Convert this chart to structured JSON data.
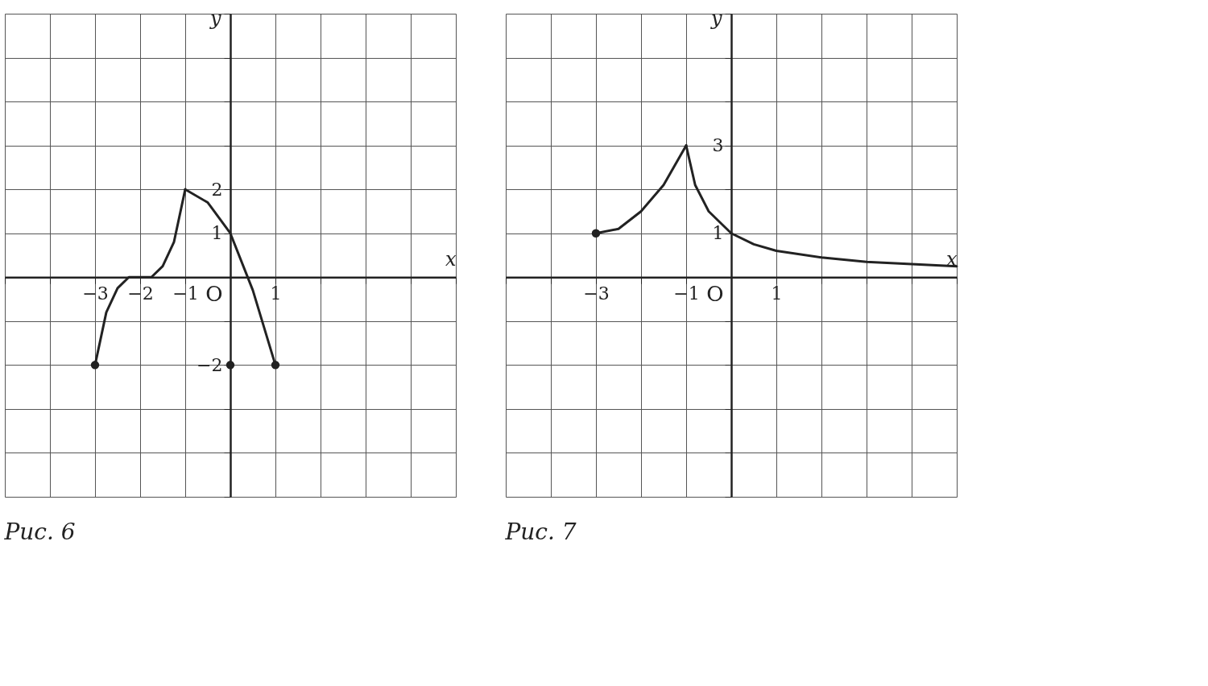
{
  "chart_data": [
    {
      "type": "line",
      "title": "Рис. 6",
      "xlabel": "x",
      "ylabel": "y",
      "grid": true,
      "annotations": [
        "O"
      ],
      "xlim": [
        -5,
        5
      ],
      "ylim": [
        -5,
        6
      ],
      "xticks": [
        {
          "value": -5,
          "label": null
        },
        {
          "value": -4,
          "label": null
        },
        {
          "value": -3,
          "label": "−3"
        },
        {
          "value": -2,
          "label": "−2"
        },
        {
          "value": -1,
          "label": "−1"
        },
        {
          "value": 0,
          "label": null
        },
        {
          "value": 1,
          "label": "1"
        },
        {
          "value": 2,
          "label": null
        },
        {
          "value": 3,
          "label": null
        },
        {
          "value": 4,
          "label": null
        },
        {
          "value": 5,
          "label": null
        }
      ],
      "yticks": [
        {
          "value": -5,
          "label": null
        },
        {
          "value": -4,
          "label": null
        },
        {
          "value": -3,
          "label": null
        },
        {
          "value": -2,
          "label": "−2"
        },
        {
          "value": -1,
          "label": null
        },
        {
          "value": 0,
          "label": null
        },
        {
          "value": 1,
          "label": "1"
        },
        {
          "value": 2,
          "label": "2"
        },
        {
          "value": 3,
          "label": null
        },
        {
          "value": 4,
          "label": null
        },
        {
          "value": 5,
          "label": null
        },
        {
          "value": 6,
          "label": null
        }
      ],
      "series": [
        {
          "color": "#222222",
          "x": [
            -3,
            -2.75,
            -2.5,
            -2.25,
            -2,
            -1.75,
            -1.5,
            -1.25,
            -1
          ],
          "values": [
            -2,
            -0.8,
            -0.25,
            0,
            0,
            0,
            0.25,
            0.8,
            2
          ]
        },
        {
          "color": "#222222",
          "x": [
            -1,
            -0.5,
            0,
            0.5,
            1
          ],
          "values": [
            2,
            1.7,
            1,
            -0.3,
            -2
          ]
        },
        {
          "type": "scatter",
          "color": "#222222",
          "x": [
            -3,
            0,
            1
          ],
          "values": [
            -2,
            -2,
            -2
          ]
        }
      ]
    },
    {
      "type": "line",
      "title": "Рис. 7",
      "xlabel": "x",
      "ylabel": "y",
      "grid": true,
      "annotations": [
        "O"
      ],
      "xlim": [
        -5,
        5
      ],
      "ylim": [
        -5,
        6
      ],
      "xticks": [
        {
          "value": -5,
          "label": null
        },
        {
          "value": -4,
          "label": null
        },
        {
          "value": -3,
          "label": "−3"
        },
        {
          "value": -2,
          "label": null
        },
        {
          "value": -1,
          "label": "−1"
        },
        {
          "value": 0,
          "label": null
        },
        {
          "value": 1,
          "label": "1"
        },
        {
          "value": 2,
          "label": null
        },
        {
          "value": 3,
          "label": null
        },
        {
          "value": 4,
          "label": null
        },
        {
          "value": 5,
          "label": null
        }
      ],
      "yticks": [
        {
          "value": -5,
          "label": null
        },
        {
          "value": -4,
          "label": null
        },
        {
          "value": -3,
          "label": null
        },
        {
          "value": -2,
          "label": null
        },
        {
          "value": -1,
          "label": null
        },
        {
          "value": 0,
          "label": null
        },
        {
          "value": 1,
          "label": "1"
        },
        {
          "value": 2,
          "label": null
        },
        {
          "value": 3,
          "label": "3"
        },
        {
          "value": 4,
          "label": null
        },
        {
          "value": 5,
          "label": null
        },
        {
          "value": 6,
          "label": null
        }
      ],
      "series": [
        {
          "color": "#222222",
          "x": [
            -3,
            -2.5,
            -2,
            -1.5,
            -1
          ],
          "values": [
            1,
            1.1,
            1.5,
            2.1,
            3
          ]
        },
        {
          "color": "#222222",
          "x": [
            -1,
            -0.8,
            -0.5,
            0,
            0.5,
            1,
            2,
            3,
            4,
            5
          ],
          "values": [
            3,
            2.1,
            1.5,
            1,
            0.75,
            0.6,
            0.45,
            0.35,
            0.3,
            0.25
          ]
        },
        {
          "type": "scatter",
          "color": "#222222",
          "x": [
            -3
          ],
          "values": [
            1
          ]
        }
      ]
    }
  ]
}
